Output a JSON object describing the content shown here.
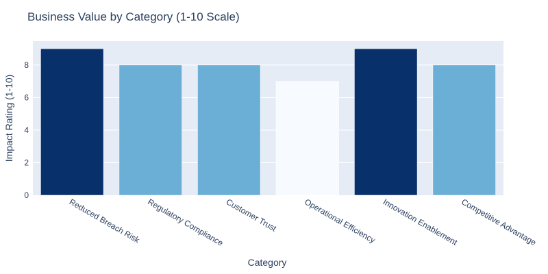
{
  "chart_data": {
    "type": "bar",
    "title": "Business Value by Category (1-10 Scale)",
    "xlabel": "Category",
    "ylabel": "Impact Rating (1-10)",
    "ylim": [
      0,
      9.47
    ],
    "yticks": [
      0,
      2,
      4,
      6,
      8
    ],
    "grid": true,
    "categories": [
      "Reduced Breach Risk",
      "Regulatory Compliance",
      "Customer Trust",
      "Operational Efficiency",
      "Innovation Enablement",
      "Competitive Advantage"
    ],
    "values": [
      9,
      8,
      8,
      7,
      9,
      8
    ],
    "bar_colors": [
      "#08306b",
      "#6baed6",
      "#6baed6",
      "#f7fbff",
      "#08306b",
      "#6baed6"
    ],
    "plot_background": "#e5ecf6",
    "text_color": "#2a3f5f"
  }
}
